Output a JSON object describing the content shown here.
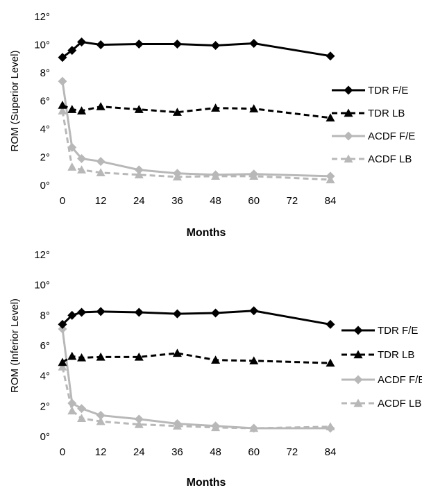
{
  "chart_data": [
    {
      "type": "line",
      "ylabel": "ROM (Superior Level)",
      "xlabel": "Months",
      "x_ticks": [
        "0",
        "12",
        "24",
        "36",
        "48",
        "60",
        "72",
        "84"
      ],
      "y_ticks": [
        "0°",
        "2°",
        "4°",
        "6°",
        "8°",
        "10°",
        "12°"
      ],
      "xlim": [
        0,
        84
      ],
      "ylim": [
        0,
        12
      ],
      "legend_position": "right",
      "grid": false,
      "series": [
        {
          "name": "TDR F/E",
          "color": "#000000",
          "dash": "solid",
          "marker": "diamond",
          "x": [
            0,
            3,
            6,
            12,
            24,
            36,
            48,
            60,
            84
          ],
          "y": [
            9.1,
            9.6,
            10.2,
            10.0,
            10.05,
            10.05,
            9.95,
            10.1,
            9.2
          ]
        },
        {
          "name": "TDR LB",
          "color": "#000000",
          "dash": "dashed",
          "marker": "triangle",
          "x": [
            0,
            3,
            6,
            12,
            24,
            36,
            48,
            60,
            84
          ],
          "y": [
            5.7,
            5.4,
            5.3,
            5.6,
            5.4,
            5.2,
            5.5,
            5.45,
            4.8
          ]
        },
        {
          "name": "ACDF F/E",
          "color": "#b8b8b8",
          "dash": "solid",
          "marker": "diamond",
          "x": [
            0,
            3,
            6,
            12,
            24,
            36,
            48,
            60,
            84
          ],
          "y": [
            7.4,
            2.7,
            1.9,
            1.7,
            1.1,
            0.85,
            0.75,
            0.8,
            0.65
          ]
        },
        {
          "name": "ACDF LB",
          "color": "#b8b8b8",
          "dash": "dashed",
          "marker": "triangle",
          "x": [
            0,
            3,
            6,
            12,
            24,
            36,
            48,
            60,
            84
          ],
          "y": [
            5.3,
            1.3,
            1.1,
            0.9,
            0.75,
            0.6,
            0.65,
            0.65,
            0.4
          ]
        }
      ]
    },
    {
      "type": "line",
      "ylabel": "ROM (Inferior Level)",
      "xlabel": "Months",
      "x_ticks": [
        "0",
        "12",
        "24",
        "36",
        "48",
        "60",
        "72",
        "84"
      ],
      "y_ticks": [
        "0°",
        "2°",
        "4°",
        "6°",
        "8°",
        "10°",
        "12°"
      ],
      "xlim": [
        0,
        84
      ],
      "ylim": [
        0,
        12
      ],
      "legend_position": "right",
      "grid": false,
      "series": [
        {
          "name": "TDR F/E",
          "color": "#000000",
          "dash": "solid",
          "marker": "diamond",
          "x": [
            0,
            3,
            6,
            12,
            24,
            36,
            48,
            60,
            84
          ],
          "y": [
            7.4,
            8.0,
            8.2,
            8.25,
            8.2,
            8.1,
            8.15,
            8.3,
            7.4
          ]
        },
        {
          "name": "TDR LB",
          "color": "#000000",
          "dash": "dashed",
          "marker": "triangle",
          "x": [
            0,
            3,
            6,
            12,
            24,
            36,
            48,
            60,
            84
          ],
          "y": [
            4.9,
            5.3,
            5.2,
            5.25,
            5.25,
            5.5,
            5.05,
            5.0,
            4.85
          ]
        },
        {
          "name": "ACDF F/E",
          "color": "#b8b8b8",
          "dash": "solid",
          "marker": "diamond",
          "x": [
            0,
            3,
            6,
            12,
            24,
            36,
            48,
            60,
            84
          ],
          "y": [
            7.1,
            2.2,
            1.85,
            1.4,
            1.15,
            0.85,
            0.7,
            0.55,
            0.55
          ]
        },
        {
          "name": "ACDF LB",
          "color": "#b8b8b8",
          "dash": "dashed",
          "marker": "triangle",
          "x": [
            0,
            3,
            6,
            12,
            24,
            36,
            48,
            60,
            84
          ],
          "y": [
            4.6,
            1.7,
            1.2,
            1.0,
            0.8,
            0.7,
            0.6,
            0.55,
            0.65
          ]
        }
      ]
    }
  ]
}
